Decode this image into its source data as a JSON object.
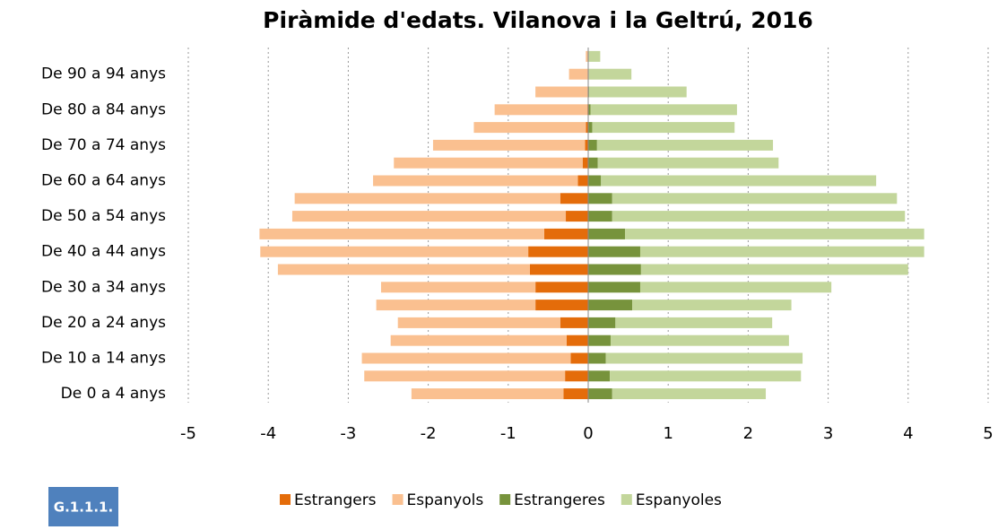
{
  "chart_data": {
    "type": "pyramid",
    "title": "Piràmide d'edats. Vilanova i la Geltrú, 2016",
    "badge": "G.1.1.1.",
    "categories": [
      "De 0 a 4 anys",
      null,
      "De 10 a 14 anys",
      null,
      "De 20 a 24 anys",
      null,
      "De 30 a 34 anys",
      null,
      "De 40 a 44 anys",
      null,
      "De 50 a 54 anys",
      null,
      "De 60 a 64 anys",
      null,
      "De 70 a 74 anys",
      null,
      "De 80 a 84 anys",
      null,
      "De 90 a 94 anys",
      null
    ],
    "series": [
      {
        "name": "Estrangers",
        "color": "#e46c0a",
        "stack": "left",
        "values": [
          -0.31,
          -0.29,
          -0.22,
          -0.27,
          -0.35,
          -0.66,
          -0.66,
          -0.73,
          -0.75,
          -0.55,
          -0.28,
          -0.35,
          -0.13,
          -0.07,
          -0.04,
          -0.03,
          -0.01,
          0,
          0,
          0
        ]
      },
      {
        "name": "Espanyols",
        "color": "#fac090",
        "stack": "left",
        "values": [
          -1.9,
          -2.51,
          -2.61,
          -2.2,
          -2.03,
          -1.99,
          -1.93,
          -3.15,
          -3.35,
          -3.56,
          -3.42,
          -3.32,
          -2.56,
          -2.36,
          -1.9,
          -1.4,
          -1.16,
          -0.66,
          -0.24,
          -0.03
        ]
      },
      {
        "name": "Estrangeres",
        "color": "#77933c",
        "stack": "right",
        "values": [
          0.3,
          0.27,
          0.22,
          0.28,
          0.34,
          0.55,
          0.65,
          0.66,
          0.65,
          0.46,
          0.3,
          0.3,
          0.16,
          0.12,
          0.11,
          0.05,
          0.03,
          0.01,
          0,
          0
        ]
      },
      {
        "name": "Espanyoles",
        "color": "#c3d69b",
        "stack": "right",
        "values": [
          1.92,
          2.39,
          2.46,
          2.23,
          1.96,
          1.99,
          2.39,
          3.34,
          3.55,
          3.74,
          3.66,
          3.56,
          3.44,
          2.26,
          2.2,
          1.78,
          1.83,
          1.22,
          0.54,
          0.15
        ]
      }
    ],
    "xlim": [
      -5,
      5
    ],
    "xticks": [
      -5,
      -4,
      -3,
      -2,
      -1,
      0,
      1,
      2,
      3,
      4,
      5
    ],
    "grid": true
  }
}
